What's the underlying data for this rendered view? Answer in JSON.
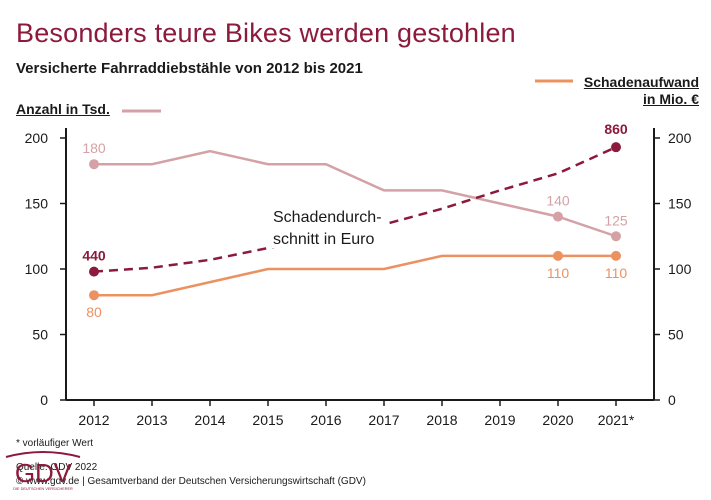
{
  "header": {
    "title": "Besonders teure Bikes werden gestohlen",
    "subtitle": "Versicherte Fahrraddiebstähle von 2012 bis 2021"
  },
  "legend": {
    "left": "Anzahl in Tsd.",
    "right_line1": "Schadenaufwand",
    "right_line2": "in Mio. €"
  },
  "annotation": {
    "line1": "Schadendurch-",
    "line2": "schnitt in Euro"
  },
  "footer": {
    "note": "* vorläufiger Wert",
    "source_line1": "Quelle: GDV 2022",
    "source_line2": "© www.gdv.de | Gesamtverband der Deutschen Versicherungswirtschaft (GDV)"
  },
  "logo": {
    "text": "GDV",
    "tagline": "DIE DEUTSCHEN VERSICHERER"
  },
  "colors": {
    "accent": "#8c1a3c",
    "count": "#d4a1a6",
    "damage": "#ec9160",
    "axis": "#1a1a1a"
  },
  "chart_data": {
    "type": "line",
    "categories": [
      "2012",
      "2013",
      "2014",
      "2015",
      "2016",
      "2017",
      "2018",
      "2019",
      "2020",
      "2021*"
    ],
    "yticks": [
      0,
      50,
      100,
      150,
      200
    ],
    "ylim": [
      0,
      200
    ],
    "y2ticks": [
      0,
      50,
      100,
      150,
      200
    ],
    "grid": false,
    "series": [
      {
        "name": "Anzahl in Tsd.",
        "key": "count",
        "values": [
          180,
          180,
          190,
          180,
          180,
          160,
          160,
          150,
          140,
          125
        ],
        "labels": [
          {
            "index": 0,
            "text": "180"
          },
          {
            "index": 8,
            "text": "140"
          },
          {
            "index": 9,
            "text": "125"
          }
        ]
      },
      {
        "name": "Schadenaufwand in Mio. €",
        "key": "damage",
        "values": [
          80,
          80,
          90,
          100,
          100,
          100,
          110,
          110,
          110,
          110
        ],
        "labels": [
          {
            "index": 0,
            "text": "80"
          },
          {
            "index": 8,
            "text": "110"
          },
          {
            "index": 9,
            "text": "110"
          }
        ]
      },
      {
        "name": "Schadendurchschnitt in Euro",
        "key": "avg",
        "values": [
          440,
          460,
          490,
          540,
          600,
          650,
          720,
          790,
          850,
          860
        ],
        "scale_display": [
          98,
          101,
          107,
          116,
          125,
          134,
          146,
          160,
          173,
          193
        ],
        "labels": [
          {
            "index": 0,
            "text": "440"
          },
          {
            "index": 9,
            "text": "860"
          }
        ]
      }
    ]
  }
}
